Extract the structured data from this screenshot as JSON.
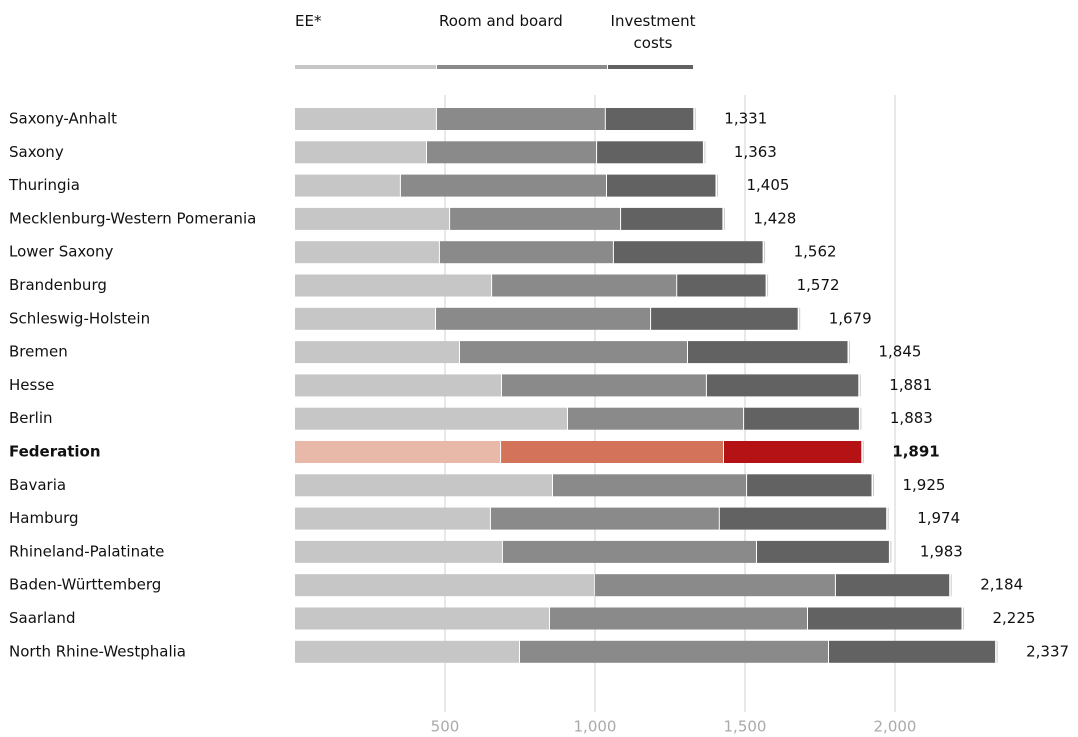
{
  "chart_data": {
    "type": "stacked-barh",
    "categories": [
      "Saxony-Anhalt",
      "Saxony",
      "Thuringia",
      "Mecklenburg-Western Pomerania",
      "Lower Saxony",
      "Brandenburg",
      "Schleswig-Holstein",
      "Bremen",
      "Hesse",
      "Berlin",
      "Federation",
      "Bavaria",
      "Hamburg",
      "Rhineland-Palatinate",
      "Baden-Württemberg",
      "Saarland",
      "North Rhine-Westphalia"
    ],
    "series": [
      {
        "name": "EE*",
        "color": "#c6c6c6",
        "highlight_color": "#e8b8a8",
        "values": [
          473,
          440,
          353,
          517,
          483,
          657,
          470,
          550,
          690,
          910,
          687,
          860,
          653,
          693,
          1000,
          850,
          750
        ]
      },
      {
        "name": "Room and board",
        "color": "#8a8a8a",
        "highlight_color": "#d2735a",
        "values": [
          563,
          567,
          687,
          570,
          580,
          617,
          717,
          760,
          683,
          587,
          743,
          647,
          763,
          847,
          803,
          860,
          1030
        ]
      },
      {
        "name": "Investment costs",
        "color": "#626262",
        "highlight_color": "#b51215",
        "values": [
          295,
          356,
          365,
          341,
          499,
          298,
          492,
          535,
          508,
          386,
          461,
          418,
          558,
          443,
          381,
          515,
          557
        ]
      }
    ],
    "totals": {
      "values": [
        1331,
        1363,
        1405,
        1428,
        1562,
        1572,
        1679,
        1845,
        1881,
        1883,
        1891,
        1925,
        1974,
        1983,
        2184,
        2225,
        2337
      ],
      "value_labels": [
        "1,331",
        "1,363",
        "1,405",
        "1,428",
        "1,562",
        "1,572",
        "1,679",
        "1,845",
        "1,881",
        "1,883",
        "1,891",
        "1,925",
        "1,974",
        "1,983",
        "2,184",
        "2,225",
        "2,337"
      ]
    },
    "highlight": "Federation",
    "xlim": [
      0,
      2500
    ],
    "xticks": [
      500,
      {
        "value": 1000,
        "label": "1,000"
      },
      {
        "value": 1500,
        "label": "1,500"
      },
      {
        "value": 2000,
        "label": "2,000"
      }
    ],
    "grid": true
  }
}
